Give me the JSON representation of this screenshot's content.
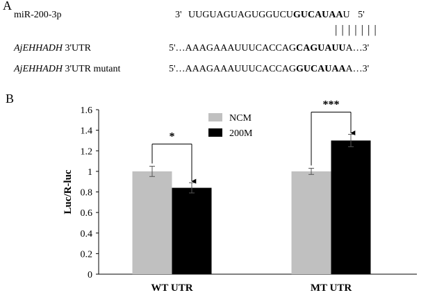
{
  "panel_a": {
    "letter": "A",
    "mirna_label": "miR-200-3p",
    "mirna_prefix": "3'",
    "mirna_seq_plain": "UUGUAGUAGUGGUCU",
    "mirna_seq_bold": "GUCAUAA",
    "mirna_seq_tail": "U",
    "mirna_suffix": "5'",
    "pairing_bars": "|||||||",
    "wt_gene": "AjEHHADH",
    "wt_label_rest": " 3'UTR",
    "wt_prefix": "5'…",
    "wt_seq_plain": "AAAGAAAUUUCACCAG",
    "wt_seq_bold": "CAGUAUU",
    "wt_seq_tail": "A…3'",
    "mut_gene": "AjEHHADH",
    "mut_label_rest": " 3'UTR mutant",
    "mut_prefix": "5'…",
    "mut_seq_plain": "AAAGAAAUUUCACCAG",
    "mut_seq_bold": "GUCAUAA",
    "mut_seq_tail": "A…3'"
  },
  "panel_b": {
    "letter": "B"
  },
  "chart_data": {
    "type": "bar",
    "categories": [
      "WT UTR",
      "MT UTR"
    ],
    "series": [
      {
        "name": "NCM",
        "values": [
          1.0,
          1.0
        ],
        "errors": [
          0.05,
          0.03
        ],
        "color": "#c0c0c0"
      },
      {
        "name": "200M",
        "values": [
          0.84,
          1.3
        ],
        "errors": [
          0.05,
          0.06
        ],
        "color": "#000000"
      }
    ],
    "ylabel": "Luc/R-luc",
    "xlabel": "",
    "ylim": [
      0,
      1.6
    ],
    "yticks": [
      "0",
      "0.2",
      "0.4",
      "0.6",
      "0.8",
      "1",
      "1.2",
      "1.4",
      "1.6"
    ],
    "yticks_values": [
      0,
      0.2,
      0.4,
      0.6,
      0.8,
      1.0,
      1.2,
      1.4,
      1.6
    ],
    "grid": false,
    "legend_position": "top-center",
    "significance": [
      "*",
      "***"
    ]
  }
}
